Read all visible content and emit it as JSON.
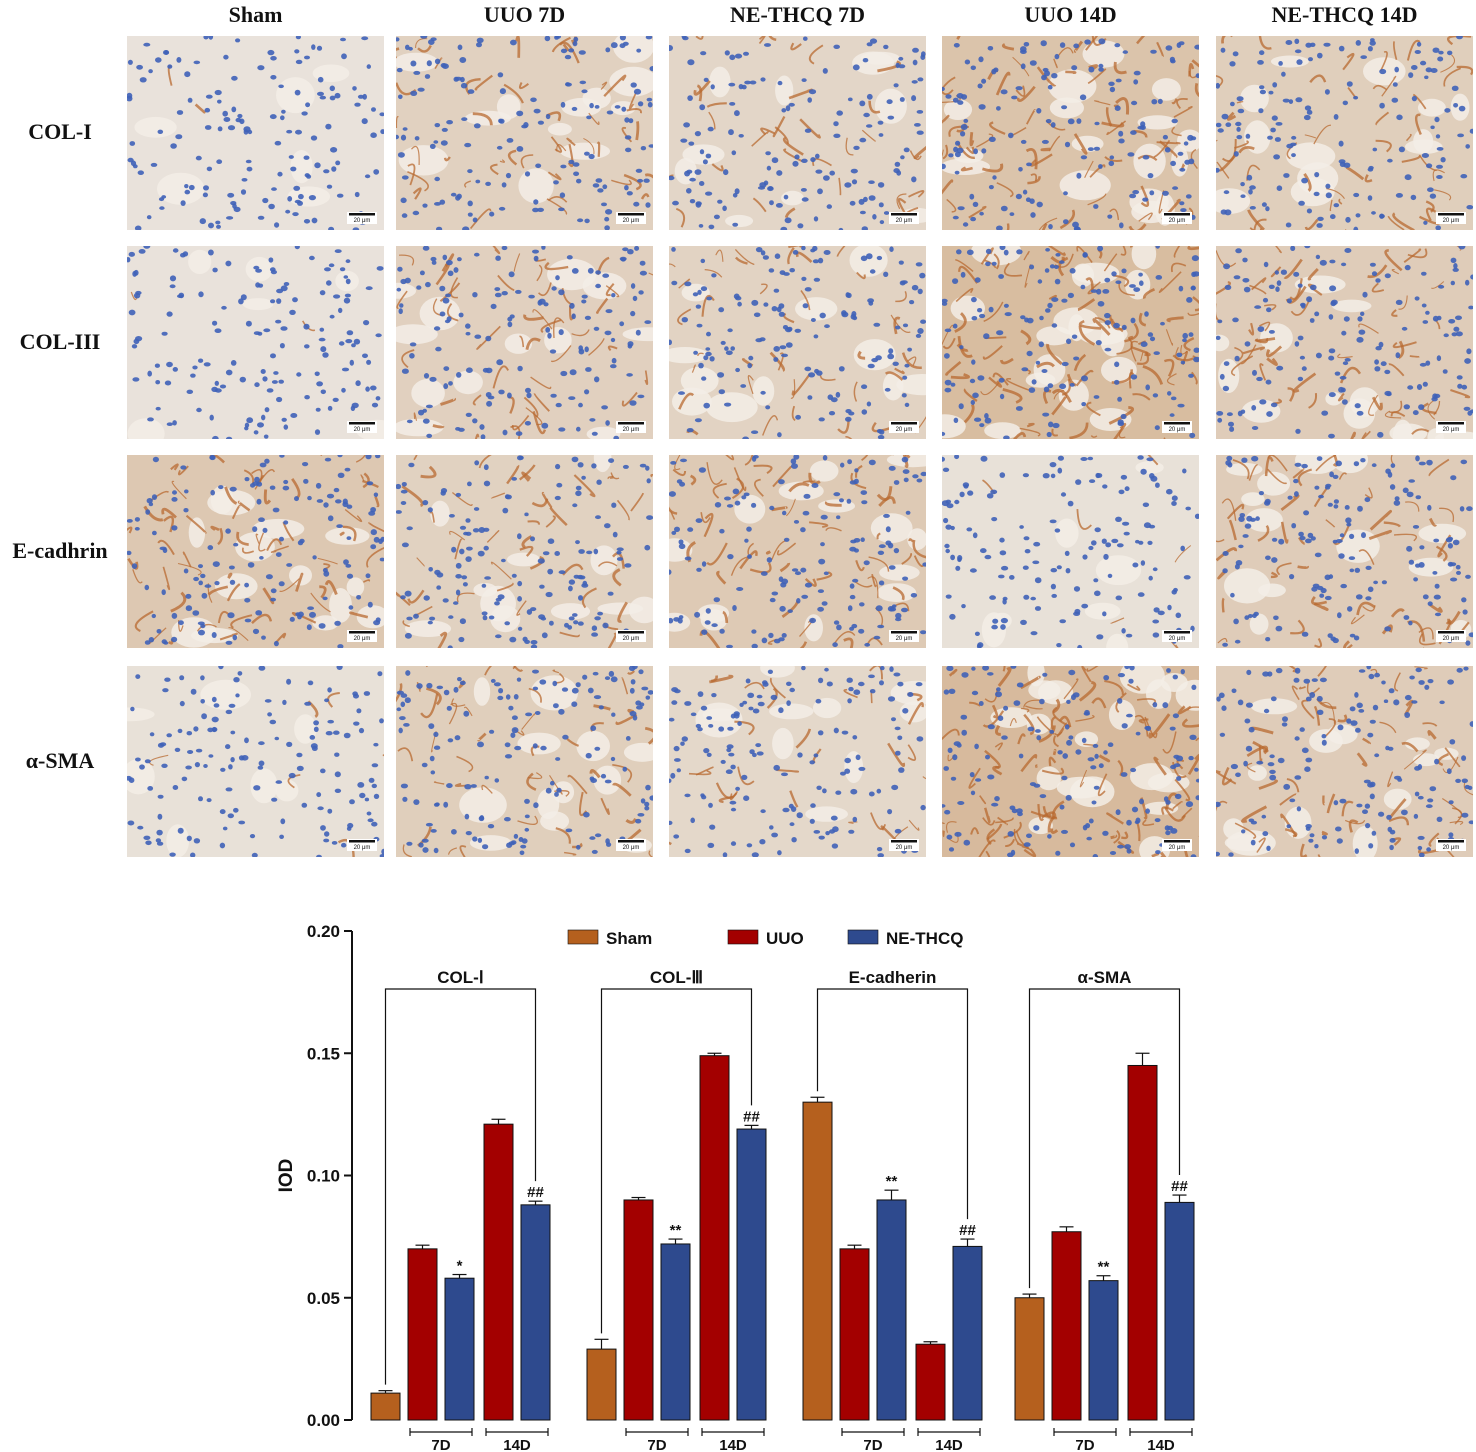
{
  "micrographs": {
    "columns": [
      "Sham",
      "UUO 7D",
      "NE-THCQ 7D",
      "UUO 14D",
      "NE-THCQ 14D"
    ],
    "rows": [
      "COL-I",
      "COL-III",
      "E-cadhrin",
      "α-SMA"
    ],
    "scale_bar": "20 μm",
    "stain_intensity": [
      [
        0.02,
        0.4,
        0.28,
        0.7,
        0.45
      ],
      [
        0.02,
        0.42,
        0.35,
        0.85,
        0.5
      ],
      [
        0.6,
        0.38,
        0.55,
        0.05,
        0.5
      ],
      [
        0.05,
        0.45,
        0.25,
        0.9,
        0.5
      ]
    ],
    "colors": {
      "background": "#e9e3dc",
      "nuclei": "#3f62b8",
      "brown_stain": "#b86a30",
      "lumen": "#f3ede6"
    }
  },
  "chart_data": {
    "type": "bar",
    "title": "",
    "xlabel": "",
    "ylabel": "IOD",
    "ylim": [
      0,
      0.2
    ],
    "yticks": [
      "0.00",
      "0.05",
      "0.10",
      "0.15",
      "0.20"
    ],
    "legend": {
      "placement": "top",
      "entries": [
        {
          "name": "Sham",
          "color": "#b5601e"
        },
        {
          "name": "UUO",
          "color": "#a30000"
        },
        {
          "name": "NE-THCQ",
          "color": "#2e4a8e"
        }
      ]
    },
    "groups": [
      {
        "label": "COL-Ⅰ",
        "bars": [
          {
            "series": "Sham",
            "time": "",
            "value": 0.011,
            "err": 0.001,
            "mark": ""
          },
          {
            "series": "UUO",
            "time": "7D",
            "value": 0.07,
            "err": 0.0015,
            "mark": ""
          },
          {
            "series": "NE-THCQ",
            "time": "7D",
            "value": 0.058,
            "err": 0.0015,
            "mark": "*"
          },
          {
            "series": "UUO",
            "time": "14D",
            "value": 0.121,
            "err": 0.002,
            "mark": ""
          },
          {
            "series": "NE-THCQ",
            "time": "14D",
            "value": 0.088,
            "err": 0.0015,
            "mark": "##"
          }
        ]
      },
      {
        "label": "COL-Ⅲ",
        "bars": [
          {
            "series": "Sham",
            "time": "",
            "value": 0.029,
            "err": 0.004,
            "mark": ""
          },
          {
            "series": "UUO",
            "time": "7D",
            "value": 0.09,
            "err": 0.001,
            "mark": ""
          },
          {
            "series": "NE-THCQ",
            "time": "7D",
            "value": 0.072,
            "err": 0.002,
            "mark": "**"
          },
          {
            "series": "UUO",
            "time": "14D",
            "value": 0.149,
            "err": 0.001,
            "mark": ""
          },
          {
            "series": "NE-THCQ",
            "time": "14D",
            "value": 0.119,
            "err": 0.0015,
            "mark": "##"
          }
        ]
      },
      {
        "label": "E-cadherin",
        "bars": [
          {
            "series": "Sham",
            "time": "",
            "value": 0.13,
            "err": 0.002,
            "mark": ""
          },
          {
            "series": "UUO",
            "time": "7D",
            "value": 0.07,
            "err": 0.0015,
            "mark": ""
          },
          {
            "series": "NE-THCQ",
            "time": "7D",
            "value": 0.09,
            "err": 0.004,
            "mark": "**"
          },
          {
            "series": "UUO",
            "time": "14D",
            "value": 0.031,
            "err": 0.001,
            "mark": ""
          },
          {
            "series": "NE-THCQ",
            "time": "14D",
            "value": 0.071,
            "err": 0.003,
            "mark": "##"
          }
        ]
      },
      {
        "label": "α-SMA",
        "bars": [
          {
            "series": "Sham",
            "time": "",
            "value": 0.05,
            "err": 0.0015,
            "mark": ""
          },
          {
            "series": "UUO",
            "time": "7D",
            "value": 0.077,
            "err": 0.002,
            "mark": ""
          },
          {
            "series": "NE-THCQ",
            "time": "7D",
            "value": 0.057,
            "err": 0.002,
            "mark": "**"
          },
          {
            "series": "UUO",
            "time": "14D",
            "value": 0.145,
            "err": 0.005,
            "mark": ""
          },
          {
            "series": "NE-THCQ",
            "time": "14D",
            "value": 0.089,
            "err": 0.003,
            "mark": "##"
          }
        ]
      }
    ]
  }
}
